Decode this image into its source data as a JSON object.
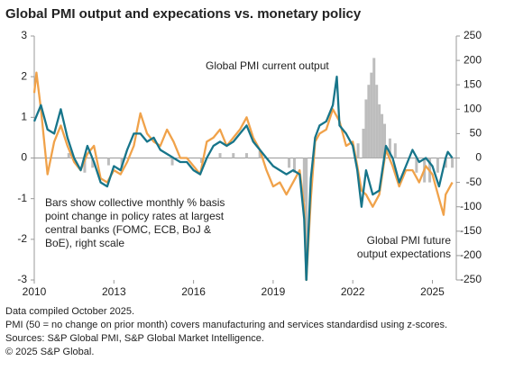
{
  "chart_data": {
    "type": "line",
    "title": "Global PMI output and expecations vs. monetary policy",
    "xlim": [
      2010,
      2025.9
    ],
    "xticks": [
      2010,
      2013,
      2016,
      2019,
      2022,
      2025
    ],
    "ylim": [
      -3,
      3
    ],
    "yticks": [
      -3,
      -2,
      -1,
      0,
      1,
      2,
      3
    ],
    "y2lim": [
      -250,
      250
    ],
    "y2ticks": [
      -250,
      -200,
      -150,
      -100,
      -50,
      0,
      50,
      100,
      150,
      200,
      250
    ],
    "series": [
      {
        "name": "Global PMI current output",
        "color": "#17758a",
        "x": [
          2010.0,
          2010.25,
          2010.5,
          2010.75,
          2011.0,
          2011.25,
          2011.5,
          2011.75,
          2012.0,
          2012.25,
          2012.5,
          2012.75,
          2013.0,
          2013.25,
          2013.5,
          2013.75,
          2014.0,
          2014.25,
          2014.5,
          2014.75,
          2015.0,
          2015.25,
          2015.5,
          2015.75,
          2016.0,
          2016.25,
          2016.5,
          2016.75,
          2017.0,
          2017.25,
          2017.5,
          2017.75,
          2018.0,
          2018.25,
          2018.5,
          2018.75,
          2019.0,
          2019.25,
          2019.5,
          2019.75,
          2020.0,
          2020.17,
          2020.25,
          2020.42,
          2020.58,
          2020.75,
          2021.0,
          2021.25,
          2021.4,
          2021.5,
          2021.75,
          2022.0,
          2022.17,
          2022.33,
          2022.5,
          2022.75,
          2023.0,
          2023.25,
          2023.5,
          2023.75,
          2024.0,
          2024.25,
          2024.5,
          2024.75,
          2025.0,
          2025.25,
          2025.5,
          2025.58,
          2025.75
        ],
        "values": [
          0.9,
          1.3,
          0.7,
          0.6,
          1.2,
          0.5,
          0.0,
          -0.3,
          0.3,
          -0.1,
          -0.6,
          -0.7,
          -0.2,
          -0.3,
          0.2,
          0.6,
          0.6,
          0.4,
          0.5,
          0.2,
          0.1,
          0.0,
          -0.1,
          -0.1,
          -0.3,
          -0.4,
          0.0,
          0.3,
          0.4,
          0.3,
          0.4,
          0.6,
          0.8,
          0.4,
          0.2,
          0.0,
          -0.2,
          -0.3,
          -0.4,
          -0.3,
          -0.4,
          -1.5,
          -3.0,
          -0.5,
          0.5,
          0.8,
          0.9,
          1.3,
          2.0,
          0.8,
          0.6,
          0.3,
          -0.3,
          -1.2,
          -0.3,
          -0.9,
          -0.8,
          0.3,
          0.0,
          -0.6,
          -0.2,
          0.2,
          -0.1,
          0.0,
          -0.2,
          -0.7,
          0.0,
          0.15,
          0.0
        ]
      },
      {
        "name": "Global PMI future output expectations",
        "color": "#f0a24a",
        "x": [
          2010.0,
          2010.08,
          2010.25,
          2010.5,
          2010.75,
          2011.0,
          2011.25,
          2011.5,
          2011.75,
          2012.0,
          2012.25,
          2012.5,
          2012.75,
          2013.0,
          2013.25,
          2013.5,
          2013.75,
          2014.0,
          2014.25,
          2014.5,
          2014.75,
          2015.0,
          2015.25,
          2015.5,
          2015.75,
          2016.0,
          2016.25,
          2016.5,
          2016.75,
          2017.0,
          2017.25,
          2017.5,
          2017.75,
          2018.0,
          2018.25,
          2018.5,
          2018.75,
          2019.0,
          2019.25,
          2019.5,
          2019.75,
          2020.0,
          2020.17,
          2020.25,
          2020.42,
          2020.58,
          2020.75,
          2021.0,
          2021.25,
          2021.5,
          2021.75,
          2022.0,
          2022.17,
          2022.33,
          2022.5,
          2022.75,
          2023.0,
          2023.25,
          2023.5,
          2023.75,
          2024.0,
          2024.25,
          2024.5,
          2024.75,
          2025.0,
          2025.25,
          2025.42,
          2025.5,
          2025.75
        ],
        "values": [
          1.6,
          2.1,
          1.2,
          -0.4,
          0.4,
          0.8,
          0.3,
          -0.1,
          -0.3,
          0.1,
          0.3,
          -0.5,
          -0.6,
          -0.3,
          -0.4,
          -0.1,
          0.3,
          1.1,
          0.6,
          0.4,
          0.3,
          0.7,
          0.4,
          0.0,
          0.0,
          -0.2,
          -0.4,
          0.4,
          0.5,
          0.7,
          0.3,
          0.5,
          0.7,
          1.0,
          0.5,
          0.2,
          -0.3,
          -0.7,
          -0.6,
          -0.9,
          -0.6,
          -0.3,
          -1.2,
          -3.0,
          -1.0,
          0.4,
          0.6,
          0.7,
          1.2,
          0.9,
          0.3,
          0.4,
          -0.2,
          -0.8,
          -0.9,
          -1.2,
          -0.9,
          0.2,
          -0.2,
          -0.7,
          -0.3,
          -0.3,
          -0.6,
          -0.2,
          -0.4,
          -1.0,
          -1.4,
          -0.9,
          -0.6
        ]
      }
    ],
    "bars": {
      "color": "#bdbdbd",
      "axis": "y2",
      "x": [
        2011.3,
        2011.9,
        2012.2,
        2012.8,
        2013.3,
        2015.2,
        2016.3,
        2017.0,
        2017.5,
        2018.0,
        2018.5,
        2019.6,
        2019.8,
        2020.17,
        2020.25,
        2022.2,
        2022.4,
        2022.5,
        2022.6,
        2022.7,
        2022.8,
        2022.9,
        2023.0,
        2023.1,
        2023.2,
        2023.4,
        2023.6,
        2024.4,
        2024.7,
        2024.9,
        2025.2,
        2025.5,
        2025.75
      ],
      "values": [
        10,
        -30,
        -20,
        -15,
        -20,
        -15,
        -10,
        10,
        10,
        10,
        15,
        -20,
        -30,
        -90,
        -250,
        30,
        60,
        120,
        150,
        175,
        205,
        150,
        110,
        90,
        70,
        40,
        30,
        -30,
        -50,
        -50,
        -30,
        -20,
        -20
      ]
    },
    "annotation": [
      "Bars show collective monthly % basis",
      "point change in policy rates at largest",
      "central banks (FOMC, ECB, BoJ &",
      "BoE), right scale"
    ],
    "notes": [
      "Data compiled October 2025.",
      "PMI (50 = no change on prior month) covers manufacturing and services standardisd using z-scores.",
      "Sources: S&P Global PMI, S&P Global Market Intelligence.",
      "© 2025 S&P Global."
    ]
  }
}
